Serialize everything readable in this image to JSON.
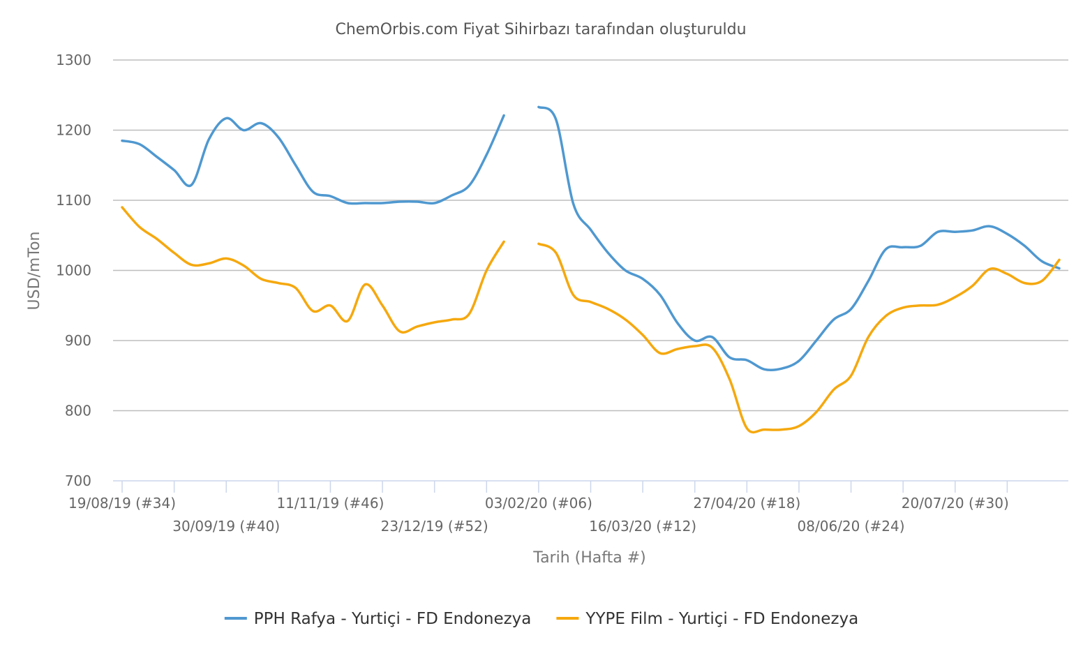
{
  "chart_data": {
    "type": "line",
    "title": "ChemOrbis.com Fiyat Sihirbazı tarafından oluşturuldu",
    "xlabel": "Tarih (Hafta #)",
    "ylabel": "USD/mTon",
    "ylim": [
      700,
      1300
    ],
    "yticks": [
      700,
      800,
      900,
      1000,
      1100,
      1200,
      1300
    ],
    "grid": true,
    "legend_position": "bottom",
    "x_range": [
      "2019-08-19",
      "2020-08-03"
    ],
    "x_tick_dates": [
      "2019-08-19",
      "2019-09-09",
      "2019-09-30",
      "2019-10-21",
      "2019-11-11",
      "2019-12-02",
      "2019-12-23",
      "2020-01-13",
      "2020-02-03",
      "2020-02-24",
      "2020-03-16",
      "2020-04-06",
      "2020-04-27",
      "2020-05-18",
      "2020-06-08",
      "2020-06-29",
      "2020-07-20",
      "2020-08-10"
    ],
    "x_tick_labels": [
      {
        "date": "2019-08-19",
        "label": "19/08/19 (#34)",
        "row": 1
      },
      {
        "date": "2019-09-30",
        "label": "30/09/19 (#40)",
        "row": 2
      },
      {
        "date": "2019-11-11",
        "label": "11/11/19 (#46)",
        "row": 1
      },
      {
        "date": "2019-12-23",
        "label": "23/12/19 (#52)",
        "row": 2
      },
      {
        "date": "2020-02-03",
        "label": "03/02/20 (#06)",
        "row": 1
      },
      {
        "date": "2020-03-16",
        "label": "16/03/20 (#12)",
        "row": 2
      },
      {
        "date": "2020-04-27",
        "label": "27/04/20 (#18)",
        "row": 1
      },
      {
        "date": "2020-06-08",
        "label": "08/06/20 (#24)",
        "row": 2
      },
      {
        "date": "2020-07-20",
        "label": "20/07/20 (#30)",
        "row": 1
      }
    ],
    "series": [
      {
        "name": "PPH Rafya - Yurtiçi  - FD Endonezya",
        "color": "#4f98d0",
        "points": [
          [
            "2019-08-19",
            1185
          ],
          [
            "2019-08-26",
            1180
          ],
          [
            "2019-09-02",
            1162
          ],
          [
            "2019-09-09",
            1143
          ],
          [
            "2019-09-16",
            1122
          ],
          [
            "2019-09-23",
            1187
          ],
          [
            "2019-09-30",
            1217
          ],
          [
            "2019-10-07",
            1200
          ],
          [
            "2019-10-14",
            1210
          ],
          [
            "2019-10-21",
            1190
          ],
          [
            "2019-10-28",
            1150
          ],
          [
            "2019-11-04",
            1112
          ],
          [
            "2019-11-11",
            1106
          ],
          [
            "2019-11-18",
            1096
          ],
          [
            "2019-11-25",
            1096
          ],
          [
            "2019-12-02",
            1096
          ],
          [
            "2019-12-09",
            1098
          ],
          [
            "2019-12-16",
            1098
          ],
          [
            "2019-12-23",
            1096
          ],
          [
            "2019-12-30",
            1107
          ],
          [
            "2020-01-06",
            1121
          ],
          [
            "2020-01-13",
            1165
          ],
          [
            "2020-01-20",
            1221
          ],
          null,
          [
            "2020-02-03",
            1233
          ],
          [
            "2020-02-10",
            1215
          ],
          [
            "2020-02-17",
            1095
          ],
          [
            "2020-02-24",
            1058
          ],
          [
            "2020-03-02",
            1025
          ],
          [
            "2020-03-09",
            1000
          ],
          [
            "2020-03-16",
            988
          ],
          [
            "2020-03-23",
            965
          ],
          [
            "2020-03-30",
            925
          ],
          [
            "2020-04-06",
            900
          ],
          [
            "2020-04-13",
            905
          ],
          [
            "2020-04-20",
            876
          ],
          [
            "2020-04-27",
            872
          ],
          [
            "2020-05-04",
            859
          ],
          [
            "2020-05-11",
            860
          ],
          [
            "2020-05-18",
            871
          ],
          [
            "2020-05-25",
            900
          ],
          [
            "2020-06-01",
            930
          ],
          [
            "2020-06-08",
            945
          ],
          [
            "2020-06-15",
            985
          ],
          [
            "2020-06-22",
            1030
          ],
          [
            "2020-06-29",
            1033
          ],
          [
            "2020-07-06",
            1035
          ],
          [
            "2020-07-13",
            1055
          ],
          [
            "2020-07-20",
            1055
          ],
          [
            "2020-07-27",
            1057
          ],
          [
            "2020-08-03",
            1063
          ],
          [
            "2020-08-10",
            1052
          ],
          [
            "2020-08-17",
            1035
          ],
          [
            "2020-08-24",
            1013
          ],
          [
            "2020-08-31",
            1003
          ]
        ]
      },
      {
        "name": "YYPE Film - Yurtiçi  - FD Endonezya",
        "color": "#f5a80e",
        "points": [
          [
            "2019-08-19",
            1090
          ],
          [
            "2019-08-26",
            1062
          ],
          [
            "2019-09-02",
            1045
          ],
          [
            "2019-09-09",
            1025
          ],
          [
            "2019-09-16",
            1008
          ],
          [
            "2019-09-23",
            1010
          ],
          [
            "2019-09-30",
            1017
          ],
          [
            "2019-10-07",
            1007
          ],
          [
            "2019-10-14",
            988
          ],
          [
            "2019-10-21",
            982
          ],
          [
            "2019-10-28",
            975
          ],
          [
            "2019-11-04",
            942
          ],
          [
            "2019-11-11",
            950
          ],
          [
            "2019-11-18",
            928
          ],
          [
            "2019-11-25",
            980
          ],
          [
            "2019-12-02",
            950
          ],
          [
            "2019-12-09",
            913
          ],
          [
            "2019-12-16",
            920
          ],
          [
            "2019-12-23",
            926
          ],
          [
            "2019-12-30",
            930
          ],
          [
            "2020-01-06",
            938
          ],
          [
            "2020-01-13",
            1000
          ],
          [
            "2020-01-20",
            1041
          ],
          null,
          [
            "2020-02-03",
            1038
          ],
          [
            "2020-02-10",
            1025
          ],
          [
            "2020-02-17",
            965
          ],
          [
            "2020-02-24",
            955
          ],
          [
            "2020-03-02",
            945
          ],
          [
            "2020-03-09",
            930
          ],
          [
            "2020-03-16",
            908
          ],
          [
            "2020-03-23",
            882
          ],
          [
            "2020-03-30",
            888
          ],
          [
            "2020-04-06",
            892
          ],
          [
            "2020-04-13",
            890
          ],
          [
            "2020-04-20",
            845
          ],
          [
            "2020-04-27",
            775
          ],
          [
            "2020-05-04",
            773
          ],
          [
            "2020-05-11",
            773
          ],
          [
            "2020-05-18",
            778
          ],
          [
            "2020-05-25",
            798
          ],
          [
            "2020-06-01",
            830
          ],
          [
            "2020-06-08",
            850
          ],
          [
            "2020-06-15",
            905
          ],
          [
            "2020-06-22",
            935
          ],
          [
            "2020-06-29",
            947
          ],
          [
            "2020-07-06",
            950
          ],
          [
            "2020-07-13",
            951
          ],
          [
            "2020-07-20",
            962
          ],
          [
            "2020-07-27",
            978
          ],
          [
            "2020-08-03",
            1002
          ],
          [
            "2020-08-10",
            995
          ],
          [
            "2020-08-17",
            982
          ],
          [
            "2020-08-24",
            985
          ],
          [
            "2020-08-31",
            1015
          ]
        ]
      }
    ]
  }
}
